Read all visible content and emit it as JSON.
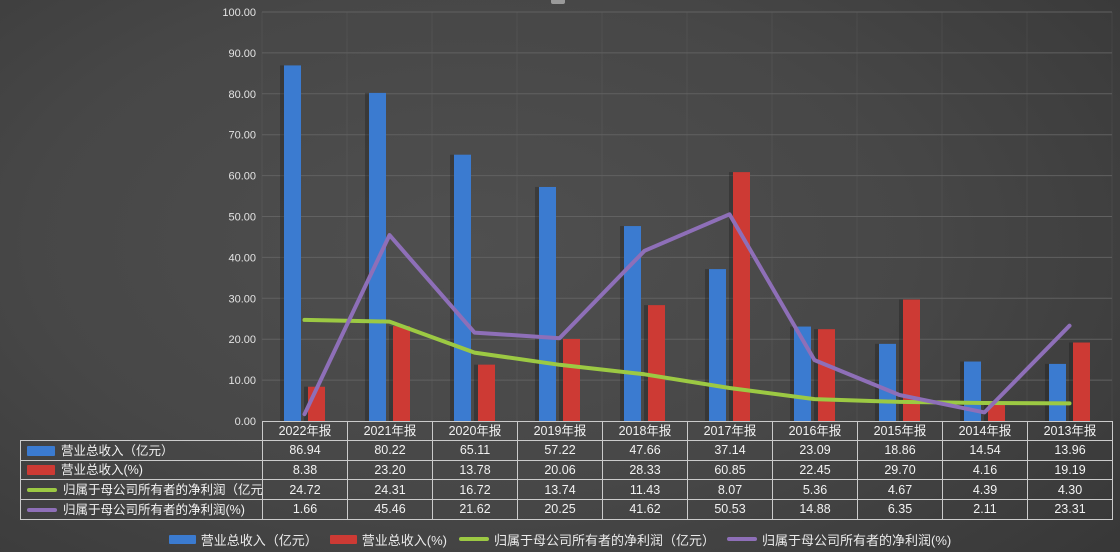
{
  "chart_data": {
    "type": "combo-bar-line",
    "categories": [
      "2022年报",
      "2021年报",
      "2020年报",
      "2019年报",
      "2018年报",
      "2017年报",
      "2016年报",
      "2015年报",
      "2014年报",
      "2013年报"
    ],
    "series": [
      {
        "name": "营业总收入（亿元）",
        "type": "bar",
        "color": "#3B7BD0",
        "values": [
          86.94,
          80.22,
          65.11,
          57.22,
          47.66,
          37.14,
          23.09,
          18.86,
          14.54,
          13.96
        ]
      },
      {
        "name": "营业总收入(%)",
        "type": "bar",
        "color": "#CD3A34",
        "values": [
          8.38,
          23.2,
          13.78,
          20.06,
          28.33,
          60.85,
          22.45,
          29.7,
          4.16,
          19.19
        ]
      },
      {
        "name": "归属于母公司所有者的净利润（亿元）",
        "type": "line",
        "color": "#9CC943",
        "values": [
          24.72,
          24.31,
          16.72,
          13.74,
          11.43,
          8.07,
          5.36,
          4.67,
          4.39,
          4.3
        ]
      },
      {
        "name": "归属于母公司所有者的净利润(%)",
        "type": "line",
        "color": "#8E6FB8",
        "values": [
          1.66,
          45.46,
          21.62,
          20.25,
          41.62,
          50.53,
          14.88,
          6.35,
          2.11,
          23.31
        ]
      }
    ],
    "ylim": [
      0,
      100
    ],
    "y_ticks": [
      "100.00",
      "90.00",
      "80.00",
      "70.00",
      "60.00",
      "50.00",
      "40.00",
      "30.00",
      "20.00",
      "10.00",
      "0.00"
    ],
    "grid": true,
    "legend_position": "bottom",
    "value_decimals": 2
  },
  "colors": {
    "background_center": "#4f4f4f",
    "background_edge": "#323232",
    "h_gridline": "#616161",
    "v_gridline": "rgba(255,255,255,0.05)",
    "axis_text": "#e3e3e3",
    "table_border": "#cbcbcb",
    "table_text": "#f2f2f2",
    "bar_shadow": "rgba(25,25,25,0.35)"
  }
}
